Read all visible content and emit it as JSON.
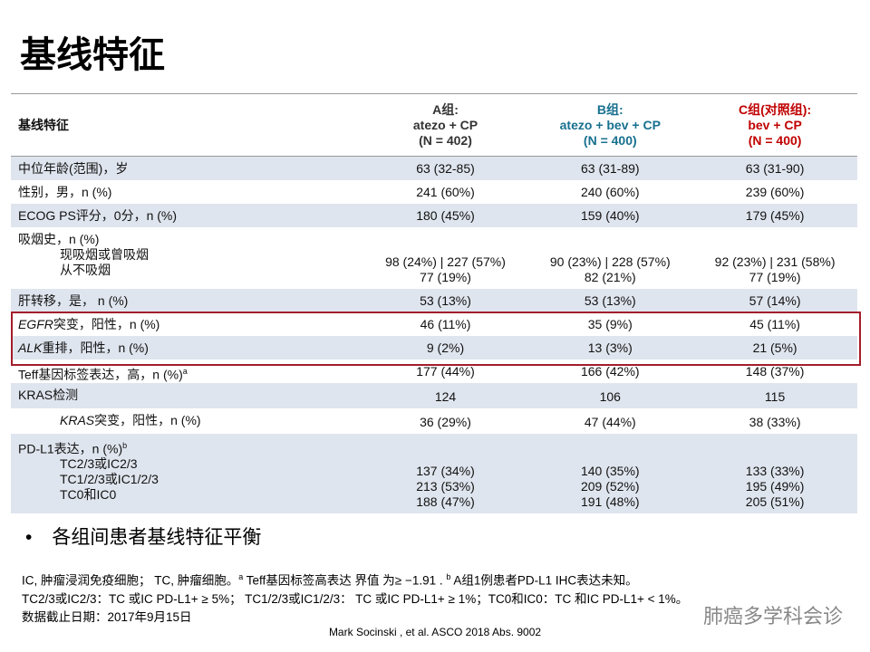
{
  "header": {
    "title": "基线特征"
  },
  "table": {
    "columns": [
      [
        "基线特征"
      ],
      [
        "A组:",
        "atezo + CP",
        "(N = 402)"
      ],
      [
        "B组:",
        "atezo + bev + CP",
        "(N = 400)"
      ],
      [
        "C组(对照组):",
        "bev + CP",
        "(N = 400)"
      ]
    ],
    "rows": [
      {
        "label": [
          [
            "中位年龄(范围)，岁"
          ]
        ],
        "values": [
          [
            "63 (32-85)"
          ],
          [
            "63 (31-89)"
          ],
          [
            "63 (31-90)"
          ]
        ]
      },
      {
        "label": [
          [
            "性别，男，n (%)"
          ]
        ],
        "values": [
          [
            "241 (60%)"
          ],
          [
            "240 (60%)"
          ],
          [
            "239 (60%)"
          ]
        ]
      },
      {
        "label": [
          [
            "ECOG PS评分，0分，n (%)"
          ]
        ],
        "values": [
          [
            "180 (45%)"
          ],
          [
            "159 (40%)"
          ],
          [
            "179 (45%)"
          ]
        ]
      },
      {
        "label": [
          [
            "吸烟史，n (%)"
          ],
          [
            "现吸烟或曾吸烟"
          ],
          [
            "从不吸烟"
          ]
        ],
        "values": [
          [
            "98 (24%) | 227 (57%)",
            "77 (19%)"
          ],
          [
            "90 (23%) | 228 (57%)",
            "82 (21%)"
          ],
          [
            "92 (23%) | 231 (58%)",
            "77 (19%)"
          ]
        ]
      },
      {
        "label": [
          [
            "肝转移，是， n (%)"
          ]
        ],
        "values": [
          [
            "53 (13%)"
          ],
          [
            "53 (13%)"
          ],
          [
            "57 (14%)"
          ]
        ]
      },
      {
        "label": [
          [
            {
              "text": "EGFR",
              "style": "italic"
            },
            "突变，阳性，n (%)"
          ]
        ],
        "values": [
          [
            "46 (11%)"
          ],
          [
            "35 (9%)"
          ],
          [
            "45 (11%)"
          ]
        ]
      },
      {
        "label": [
          [
            {
              "text": "ALK",
              "style": "italic"
            },
            "重排，阳性，n (%)"
          ]
        ],
        "values": [
          [
            "9 (2%)"
          ],
          [
            "13 (3%)"
          ],
          [
            "21 (5%)"
          ]
        ]
      },
      {
        "label": [
          [
            "Teff基因标签表达，高，n (%)",
            {
              "text": "a",
              "style": "sup"
            }
          ]
        ],
        "values": [
          [
            "177 (44%)"
          ],
          [
            "166 (42%)"
          ],
          [
            "148 (37%)"
          ]
        ]
      },
      {
        "label": [
          [
            "KRAS检测"
          ]
        ],
        "values": [
          [
            "124"
          ],
          [
            "106"
          ],
          [
            "115"
          ]
        ]
      },
      {
        "label": [
          [
            {
              "text": "KRAS",
              "style": "italic"
            },
            "突变，阳性，n (%)"
          ]
        ],
        "values": [
          [
            "36 (29%)"
          ],
          [
            "47 (44%)"
          ],
          [
            "38 (33%)"
          ]
        ]
      },
      {
        "label": [
          [
            "PD-L1表达，n (%)",
            {
              "text": "b",
              "style": "sup"
            }
          ],
          [
            "TC2/3或IC2/3"
          ],
          [
            "TC1/2/3或IC1/2/3"
          ],
          [
            "TC0和IC0"
          ]
        ],
        "values": [
          [
            "137 (34%)",
            "213 (53%)",
            "188 (47%)"
          ],
          [
            "140 (35%)",
            "209 (52%)",
            "191 (48%)"
          ],
          [
            "133 (33%)",
            "195 (49%)",
            "205 (51%)"
          ]
        ]
      }
    ]
  },
  "bullet": "各组间患者基线特征平衡",
  "footnotes": [
    [
      "IC, 肿瘤浸润免疫细胞； TC, 肿瘤细胞。",
      {
        "text": "a",
        "style": "sup"
      },
      " Teff基因标签高表达 界值 为≥ −1.91 . ",
      {
        "text": "b",
        "style": "sup"
      },
      " A组1例患者PD-L1 IHC表达未知。"
    ],
    [
      "TC2/3或IC2/3：TC 或IC PD-L1+ ≥ 5%； TC1/2/3或IC1/2/3： TC 或IC PD-L1+ ≥ 1%；TC0和IC0：TC 和IC PD-L1+ < 1%。"
    ],
    [
      "数据截止日期：2017年9月15日"
    ]
  ],
  "citation": "Mark Socinski , et al.  ASCO 2018 Abs. 9002",
  "watermark": "肺癌多学科会诊"
}
